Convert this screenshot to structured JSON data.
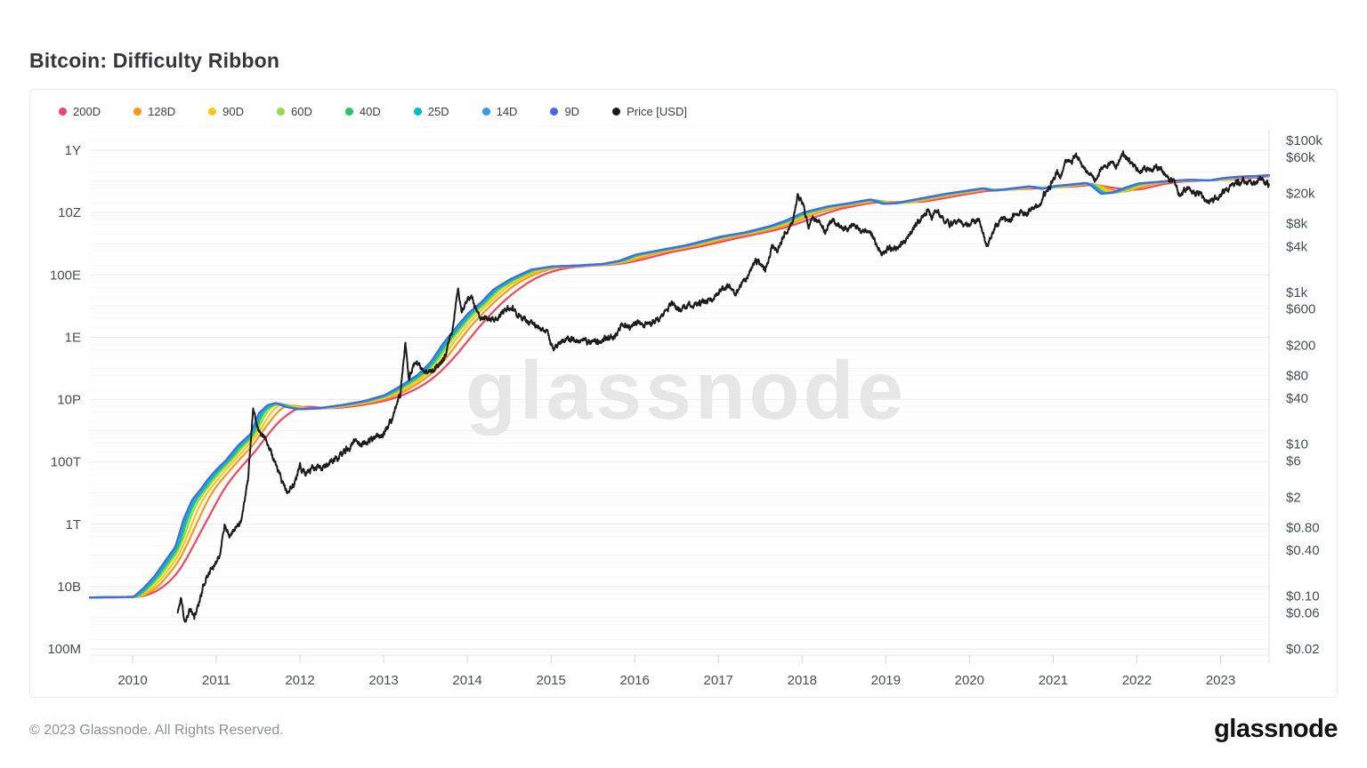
{
  "page": {
    "title": "Bitcoin: Difficulty Ribbon",
    "footer": "© 2023 Glassnode. All Rights Reserved.",
    "brand": "glassnode",
    "watermark": "glassnode"
  },
  "colors": {
    "price": "#1c1c1c",
    "axis_text": "#474d54",
    "grid_major": "#e9ebee",
    "grid_decade": "#eff1f4",
    "grid_minor": "#f5f6f8",
    "axis_line": "#dadee3",
    "tick_line": "#cfd4da",
    "watermark": "#e6e6e6"
  },
  "chart_data": {
    "type": "line",
    "title": "Bitcoin: Difficulty Ribbon",
    "x_domain": [
      2009.49,
      2023.58
    ],
    "x_ticks": [
      2010,
      2011,
      2012,
      2013,
      2014,
      2015,
      2016,
      2017,
      2018,
      2019,
      2020,
      2021,
      2022,
      2023
    ],
    "left_axis": {
      "scale": "log",
      "unit": "hashes",
      "ticks": [
        {
          "label": "1Y",
          "log10": 24
        },
        {
          "label": "10Z",
          "log10": 22
        },
        {
          "label": "100E",
          "log10": 20
        },
        {
          "label": "1E",
          "log10": 18
        },
        {
          "label": "10P",
          "log10": 16
        },
        {
          "label": "100T",
          "log10": 14
        },
        {
          "label": "1T",
          "log10": 12
        },
        {
          "label": "10B",
          "log10": 10
        },
        {
          "label": "100M",
          "log10": 8
        }
      ]
    },
    "right_axis": {
      "scale": "log",
      "unit": "USD",
      "ticks": [
        {
          "label": "$100k",
          "value": 100000
        },
        {
          "label": "$60k",
          "value": 60000
        },
        {
          "label": "$20k",
          "value": 20000
        },
        {
          "label": "$8k",
          "value": 8000
        },
        {
          "label": "$4k",
          "value": 4000
        },
        {
          "label": "$1k",
          "value": 1000
        },
        {
          "label": "$600",
          "value": 600
        },
        {
          "label": "$200",
          "value": 200
        },
        {
          "label": "$80",
          "value": 80
        },
        {
          "label": "$40",
          "value": 40
        },
        {
          "label": "$10",
          "value": 10
        },
        {
          "label": "$6",
          "value": 6
        },
        {
          "label": "$2",
          "value": 2
        },
        {
          "label": "$0.80",
          "value": 0.8
        },
        {
          "label": "$0.40",
          "value": 0.4
        },
        {
          "label": "$0.10",
          "value": 0.1
        },
        {
          "label": "$0.06",
          "value": 0.06
        },
        {
          "label": "$0.02",
          "value": 0.02
        }
      ]
    },
    "legend": [
      {
        "label": "200D",
        "days": 200,
        "color": "#f6465d"
      },
      {
        "label": "128D",
        "days": 128,
        "color": "#ff9416"
      },
      {
        "label": "90D",
        "days": 90,
        "color": "#ffc810"
      },
      {
        "label": "60D",
        "days": 60,
        "color": "#8fdc43"
      },
      {
        "label": "40D",
        "days": 40,
        "color": "#27c269"
      },
      {
        "label": "25D",
        "days": 25,
        "color": "#00bccd"
      },
      {
        "label": "14D",
        "days": 14,
        "color": "#2e9bf7"
      },
      {
        "label": "9D",
        "days": 9,
        "color": "#4566f0"
      },
      {
        "label": "Price [USD]",
        "color": "#1c1c1c"
      }
    ],
    "difficulty_log10_hashes": [
      [
        2009.0,
        9.633
      ],
      [
        2010.0,
        9.67
      ],
      [
        2010.12,
        9.95
      ],
      [
        2010.25,
        10.33
      ],
      [
        2010.4,
        10.9
      ],
      [
        2010.5,
        11.28
      ],
      [
        2010.6,
        12.17
      ],
      [
        2010.7,
        12.78
      ],
      [
        2010.8,
        13.11
      ],
      [
        2010.9,
        13.48
      ],
      [
        2011.0,
        13.78
      ],
      [
        2011.1,
        14.04
      ],
      [
        2011.25,
        14.53
      ],
      [
        2011.4,
        14.9
      ],
      [
        2011.5,
        15.57
      ],
      [
        2011.6,
        15.82
      ],
      [
        2011.7,
        15.89
      ],
      [
        2011.8,
        15.78
      ],
      [
        2011.95,
        15.69
      ],
      [
        2012.2,
        15.72
      ],
      [
        2012.5,
        15.83
      ],
      [
        2012.75,
        15.95
      ],
      [
        2013.0,
        16.14
      ],
      [
        2013.2,
        16.45
      ],
      [
        2013.4,
        16.8
      ],
      [
        2013.55,
        17.2
      ],
      [
        2013.7,
        17.8
      ],
      [
        2013.85,
        18.3
      ],
      [
        2014.0,
        18.77
      ],
      [
        2014.15,
        19.11
      ],
      [
        2014.3,
        19.53
      ],
      [
        2014.5,
        19.86
      ],
      [
        2014.75,
        20.17
      ],
      [
        2015.0,
        20.27
      ],
      [
        2015.3,
        20.3
      ],
      [
        2015.6,
        20.35
      ],
      [
        2015.8,
        20.45
      ],
      [
        2016.0,
        20.65
      ],
      [
        2016.3,
        20.8
      ],
      [
        2016.6,
        20.95
      ],
      [
        2017.0,
        21.22
      ],
      [
        2017.3,
        21.36
      ],
      [
        2017.6,
        21.56
      ],
      [
        2017.8,
        21.75
      ],
      [
        2018.0,
        22.0
      ],
      [
        2018.3,
        22.2
      ],
      [
        2018.55,
        22.3
      ],
      [
        2018.8,
        22.42
      ],
      [
        2018.95,
        22.28
      ],
      [
        2019.1,
        22.3
      ],
      [
        2019.4,
        22.45
      ],
      [
        2019.7,
        22.6
      ],
      [
        2020.0,
        22.72
      ],
      [
        2020.15,
        22.78
      ],
      [
        2020.25,
        22.7
      ],
      [
        2020.45,
        22.76
      ],
      [
        2020.7,
        22.84
      ],
      [
        2020.85,
        22.76
      ],
      [
        2021.0,
        22.85
      ],
      [
        2021.2,
        22.9
      ],
      [
        2021.38,
        22.95
      ],
      [
        2021.45,
        22.85
      ],
      [
        2021.56,
        22.6
      ],
      [
        2021.7,
        22.65
      ],
      [
        2021.85,
        22.8
      ],
      [
        2022.0,
        22.93
      ],
      [
        2022.3,
        23.0
      ],
      [
        2022.6,
        23.05
      ],
      [
        2022.85,
        23.03
      ],
      [
        2023.0,
        23.1
      ],
      [
        2023.2,
        23.15
      ],
      [
        2023.4,
        23.17
      ],
      [
        2023.58,
        23.2
      ]
    ],
    "price_usd_log10": [
      [
        2010.54,
        -1.22
      ],
      [
        2010.58,
        -1.02
      ],
      [
        2010.62,
        -1.35
      ],
      [
        2010.68,
        -1.18
      ],
      [
        2010.74,
        -1.28
      ],
      [
        2010.8,
        -1.05
      ],
      [
        2010.88,
        -0.75
      ],
      [
        2010.96,
        -0.62
      ],
      [
        2011.04,
        -0.45
      ],
      [
        2011.1,
        -0.05
      ],
      [
        2011.16,
        -0.18
      ],
      [
        2011.24,
        -0.1
      ],
      [
        2011.3,
        0.02
      ],
      [
        2011.38,
        0.55
      ],
      [
        2011.44,
        1.48
      ],
      [
        2011.5,
        1.18
      ],
      [
        2011.56,
        1.1
      ],
      [
        2011.64,
        0.95
      ],
      [
        2011.73,
        0.65
      ],
      [
        2011.85,
        0.35
      ],
      [
        2011.93,
        0.48
      ],
      [
        2012.0,
        0.72
      ],
      [
        2012.07,
        0.6
      ],
      [
        2012.15,
        0.67
      ],
      [
        2012.3,
        0.7
      ],
      [
        2012.45,
        0.82
      ],
      [
        2012.6,
        0.97
      ],
      [
        2012.67,
        1.06
      ],
      [
        2012.74,
        0.99
      ],
      [
        2012.88,
        1.08
      ],
      [
        2013.0,
        1.13
      ],
      [
        2013.1,
        1.32
      ],
      [
        2013.2,
        1.67
      ],
      [
        2013.26,
        2.36
      ],
      [
        2013.3,
        1.85
      ],
      [
        2013.36,
        2.06
      ],
      [
        2013.44,
        2.0
      ],
      [
        2013.54,
        1.94
      ],
      [
        2013.64,
        2.03
      ],
      [
        2013.74,
        2.15
      ],
      [
        2013.82,
        2.5
      ],
      [
        2013.89,
        3.06
      ],
      [
        2013.93,
        2.74
      ],
      [
        2014.0,
        2.89
      ],
      [
        2014.05,
        2.94
      ],
      [
        2014.11,
        2.76
      ],
      [
        2014.16,
        2.64
      ],
      [
        2014.24,
        2.66
      ],
      [
        2014.34,
        2.64
      ],
      [
        2014.44,
        2.77
      ],
      [
        2014.54,
        2.79
      ],
      [
        2014.64,
        2.67
      ],
      [
        2014.78,
        2.56
      ],
      [
        2014.94,
        2.5
      ],
      [
        2015.03,
        2.24
      ],
      [
        2015.1,
        2.36
      ],
      [
        2015.2,
        2.39
      ],
      [
        2015.34,
        2.36
      ],
      [
        2015.48,
        2.35
      ],
      [
        2015.62,
        2.36
      ],
      [
        2015.76,
        2.4
      ],
      [
        2015.84,
        2.56
      ],
      [
        2015.94,
        2.54
      ],
      [
        2016.04,
        2.59
      ],
      [
        2016.16,
        2.61
      ],
      [
        2016.3,
        2.63
      ],
      [
        2016.44,
        2.86
      ],
      [
        2016.54,
        2.78
      ],
      [
        2016.68,
        2.82
      ],
      [
        2016.84,
        2.87
      ],
      [
        2017.0,
        3.0
      ],
      [
        2017.14,
        3.07
      ],
      [
        2017.21,
        2.99
      ],
      [
        2017.34,
        3.19
      ],
      [
        2017.44,
        3.41
      ],
      [
        2017.51,
        3.38
      ],
      [
        2017.56,
        3.27
      ],
      [
        2017.64,
        3.61
      ],
      [
        2017.7,
        3.55
      ],
      [
        2017.79,
        3.77
      ],
      [
        2017.86,
        3.84
      ],
      [
        2017.91,
        4.02
      ],
      [
        2017.95,
        4.28
      ],
      [
        2018.02,
        4.12
      ],
      [
        2018.08,
        3.84
      ],
      [
        2018.13,
        4.0
      ],
      [
        2018.2,
        3.93
      ],
      [
        2018.28,
        3.82
      ],
      [
        2018.35,
        3.96
      ],
      [
        2018.45,
        3.86
      ],
      [
        2018.55,
        3.81
      ],
      [
        2018.62,
        3.89
      ],
      [
        2018.72,
        3.82
      ],
      [
        2018.81,
        3.8
      ],
      [
        2018.88,
        3.63
      ],
      [
        2018.94,
        3.5
      ],
      [
        2019.0,
        3.56
      ],
      [
        2019.1,
        3.58
      ],
      [
        2019.24,
        3.7
      ],
      [
        2019.34,
        3.86
      ],
      [
        2019.44,
        4.0
      ],
      [
        2019.49,
        4.08
      ],
      [
        2019.55,
        3.99
      ],
      [
        2019.61,
        4.06
      ],
      [
        2019.71,
        3.94
      ],
      [
        2019.79,
        3.9
      ],
      [
        2019.86,
        3.96
      ],
      [
        2019.95,
        3.85
      ],
      [
        2020.04,
        3.93
      ],
      [
        2020.11,
        4.0
      ],
      [
        2020.2,
        3.6
      ],
      [
        2020.29,
        3.82
      ],
      [
        2020.37,
        3.98
      ],
      [
        2020.48,
        3.95
      ],
      [
        2020.58,
        4.06
      ],
      [
        2020.67,
        4.03
      ],
      [
        2020.77,
        4.1
      ],
      [
        2020.87,
        4.22
      ],
      [
        2020.95,
        4.38
      ],
      [
        2021.01,
        4.5
      ],
      [
        2021.05,
        4.6
      ],
      [
        2021.09,
        4.5
      ],
      [
        2021.15,
        4.72
      ],
      [
        2021.21,
        4.7
      ],
      [
        2021.27,
        4.8
      ],
      [
        2021.33,
        4.67
      ],
      [
        2021.39,
        4.6
      ],
      [
        2021.45,
        4.55
      ],
      [
        2021.51,
        4.48
      ],
      [
        2021.57,
        4.6
      ],
      [
        2021.62,
        4.67
      ],
      [
        2021.69,
        4.71
      ],
      [
        2021.75,
        4.63
      ],
      [
        2021.83,
        4.82
      ],
      [
        2021.89,
        4.76
      ],
      [
        2021.95,
        4.68
      ],
      [
        2022.02,
        4.58
      ],
      [
        2022.09,
        4.63
      ],
      [
        2022.16,
        4.6
      ],
      [
        2022.24,
        4.66
      ],
      [
        2022.32,
        4.6
      ],
      [
        2022.39,
        4.48
      ],
      [
        2022.45,
        4.46
      ],
      [
        2022.51,
        4.28
      ],
      [
        2022.57,
        4.33
      ],
      [
        2022.62,
        4.38
      ],
      [
        2022.69,
        4.29
      ],
      [
        2022.77,
        4.3
      ],
      [
        2022.83,
        4.2
      ],
      [
        2022.9,
        4.22
      ],
      [
        2022.97,
        4.23
      ],
      [
        2023.03,
        4.33
      ],
      [
        2023.1,
        4.36
      ],
      [
        2023.17,
        4.44
      ],
      [
        2023.24,
        4.45
      ],
      [
        2023.31,
        4.46
      ],
      [
        2023.39,
        4.42
      ],
      [
        2023.45,
        4.48
      ],
      [
        2023.51,
        4.47
      ],
      [
        2023.58,
        4.41
      ]
    ]
  }
}
